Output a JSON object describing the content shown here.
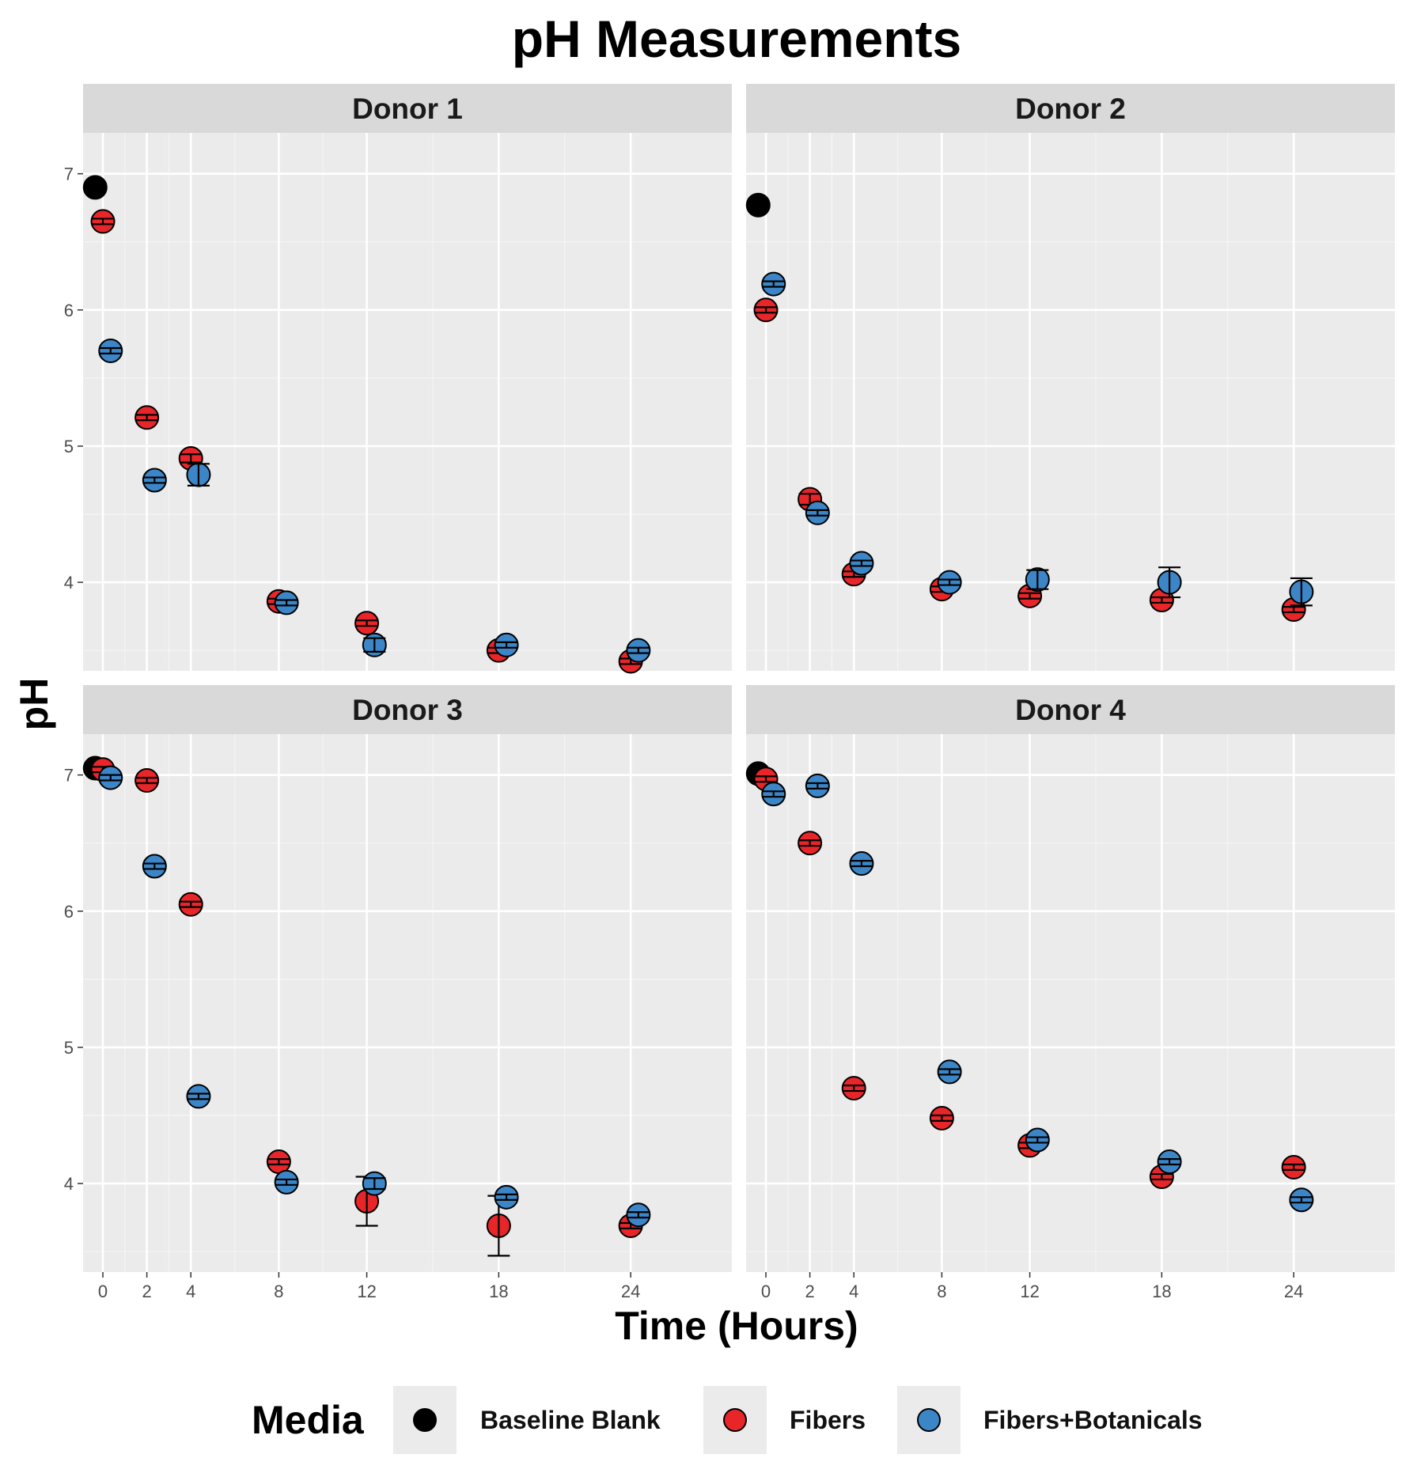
{
  "chart_data": {
    "type": "scatter",
    "title": "pH Measurements",
    "xlabel": "Time (Hours)",
    "ylabel": "pH",
    "x_ticks": [
      0,
      2,
      4,
      8,
      12,
      18,
      24
    ],
    "x_tick_labels": [
      "0",
      "2",
      "4",
      "8",
      "12",
      "18",
      "24"
    ],
    "y_ticks": [
      4,
      5,
      6,
      7
    ],
    "y_tick_labels": [
      "4",
      "5",
      "6",
      "7"
    ],
    "xlim": [
      -0.9,
      28.6
    ],
    "ylim": [
      3.35,
      7.3
    ],
    "grid": true,
    "dodge": {
      "Baseline Blank": -0.35,
      "Fibers": 0.0,
      "Fibers+Botanicals": 0.35
    },
    "legend": {
      "title": "Media",
      "position": "bottom",
      "entries": [
        {
          "label": "Baseline Blank",
          "color": "#000000"
        },
        {
          "label": "Fibers",
          "color": "#e8262a"
        },
        {
          "label": "Fibers+Botanicals",
          "color": "#3c86c8"
        }
      ]
    },
    "panels": [
      {
        "label": "Donor 1",
        "series": [
          {
            "name": "Baseline Blank",
            "points": [
              {
                "x": 0,
                "y": 6.9,
                "err": 0
              }
            ]
          },
          {
            "name": "Fibers",
            "points": [
              {
                "x": 0,
                "y": 6.65,
                "err": 0.02
              },
              {
                "x": 2,
                "y": 5.21,
                "err": 0.02
              },
              {
                "x": 4,
                "y": 4.91,
                "err": 0.03
              },
              {
                "x": 8,
                "y": 3.86,
                "err": 0.02
              },
              {
                "x": 12,
                "y": 3.7,
                "err": 0.02
              },
              {
                "x": 18,
                "y": 3.5,
                "err": 0.02
              },
              {
                "x": 24,
                "y": 3.42,
                "err": 0.02
              }
            ]
          },
          {
            "name": "Fibers+Botanicals",
            "points": [
              {
                "x": 0,
                "y": 5.7,
                "err": 0.02
              },
              {
                "x": 2,
                "y": 4.75,
                "err": 0.02
              },
              {
                "x": 4,
                "y": 4.79,
                "err": 0.08
              },
              {
                "x": 8,
                "y": 3.85,
                "err": 0.02
              },
              {
                "x": 12,
                "y": 3.54,
                "err": 0.05
              },
              {
                "x": 18,
                "y": 3.54,
                "err": 0.02
              },
              {
                "x": 24,
                "y": 3.5,
                "err": 0.02
              }
            ]
          }
        ]
      },
      {
        "label": "Donor 2",
        "series": [
          {
            "name": "Baseline Blank",
            "points": [
              {
                "x": 0,
                "y": 6.77,
                "err": 0
              }
            ]
          },
          {
            "name": "Fibers",
            "points": [
              {
                "x": 0,
                "y": 6.0,
                "err": 0.02
              },
              {
                "x": 2,
                "y": 4.61,
                "err": 0.04
              },
              {
                "x": 4,
                "y": 4.06,
                "err": 0.02
              },
              {
                "x": 8,
                "y": 3.95,
                "err": 0.02
              },
              {
                "x": 12,
                "y": 3.9,
                "err": 0.02
              },
              {
                "x": 18,
                "y": 3.87,
                "err": 0.02
              },
              {
                "x": 24,
                "y": 3.8,
                "err": 0.02
              }
            ]
          },
          {
            "name": "Fibers+Botanicals",
            "points": [
              {
                "x": 0,
                "y": 6.19,
                "err": 0.02
              },
              {
                "x": 2,
                "y": 4.51,
                "err": 0.02
              },
              {
                "x": 4,
                "y": 4.14,
                "err": 0.02
              },
              {
                "x": 8,
                "y": 4.0,
                "err": 0.02
              },
              {
                "x": 12,
                "y": 4.02,
                "err": 0.07
              },
              {
                "x": 18,
                "y": 4.0,
                "err": 0.11
              },
              {
                "x": 24,
                "y": 3.93,
                "err": 0.1
              }
            ]
          }
        ]
      },
      {
        "label": "Donor 3",
        "series": [
          {
            "name": "Baseline Blank",
            "points": [
              {
                "x": 0,
                "y": 7.05,
                "err": 0
              }
            ]
          },
          {
            "name": "Fibers",
            "points": [
              {
                "x": 0,
                "y": 7.04,
                "err": 0.02
              },
              {
                "x": 2,
                "y": 6.96,
                "err": 0.02
              },
              {
                "x": 4,
                "y": 6.05,
                "err": 0.02
              },
              {
                "x": 8,
                "y": 4.16,
                "err": 0.02
              },
              {
                "x": 12,
                "y": 3.87,
                "err": 0.18
              },
              {
                "x": 18,
                "y": 3.69,
                "err": 0.22
              },
              {
                "x": 24,
                "y": 3.69,
                "err": 0.02
              }
            ]
          },
          {
            "name": "Fibers+Botanicals",
            "points": [
              {
                "x": 0,
                "y": 6.98,
                "err": 0.02
              },
              {
                "x": 2,
                "y": 6.33,
                "err": 0.02
              },
              {
                "x": 4,
                "y": 4.64,
                "err": 0.02
              },
              {
                "x": 8,
                "y": 4.01,
                "err": 0.02
              },
              {
                "x": 12,
                "y": 4.0,
                "err": 0.04
              },
              {
                "x": 18,
                "y": 3.9,
                "err": 0.02
              },
              {
                "x": 24,
                "y": 3.77,
                "err": 0.02
              }
            ]
          }
        ]
      },
      {
        "label": "Donor 4",
        "series": [
          {
            "name": "Baseline Blank",
            "points": [
              {
                "x": 0,
                "y": 7.01,
                "err": 0
              }
            ]
          },
          {
            "name": "Fibers",
            "points": [
              {
                "x": 0,
                "y": 6.97,
                "err": 0.02
              },
              {
                "x": 2,
                "y": 6.5,
                "err": 0.02
              },
              {
                "x": 4,
                "y": 4.7,
                "err": 0.02
              },
              {
                "x": 8,
                "y": 4.48,
                "err": 0.02
              },
              {
                "x": 12,
                "y": 4.28,
                "err": 0.02
              },
              {
                "x": 18,
                "y": 4.05,
                "err": 0.02
              },
              {
                "x": 24,
                "y": 4.12,
                "err": 0.02
              }
            ]
          },
          {
            "name": "Fibers+Botanicals",
            "points": [
              {
                "x": 0,
                "y": 6.86,
                "err": 0.02
              },
              {
                "x": 2,
                "y": 6.92,
                "err": 0.02
              },
              {
                "x": 4,
                "y": 6.35,
                "err": 0.02
              },
              {
                "x": 8,
                "y": 4.82,
                "err": 0.02
              },
              {
                "x": 12,
                "y": 4.32,
                "err": 0.02
              },
              {
                "x": 18,
                "y": 4.16,
                "err": 0.02
              },
              {
                "x": 24,
                "y": 3.88,
                "err": 0.02
              }
            ]
          }
        ]
      }
    ]
  }
}
